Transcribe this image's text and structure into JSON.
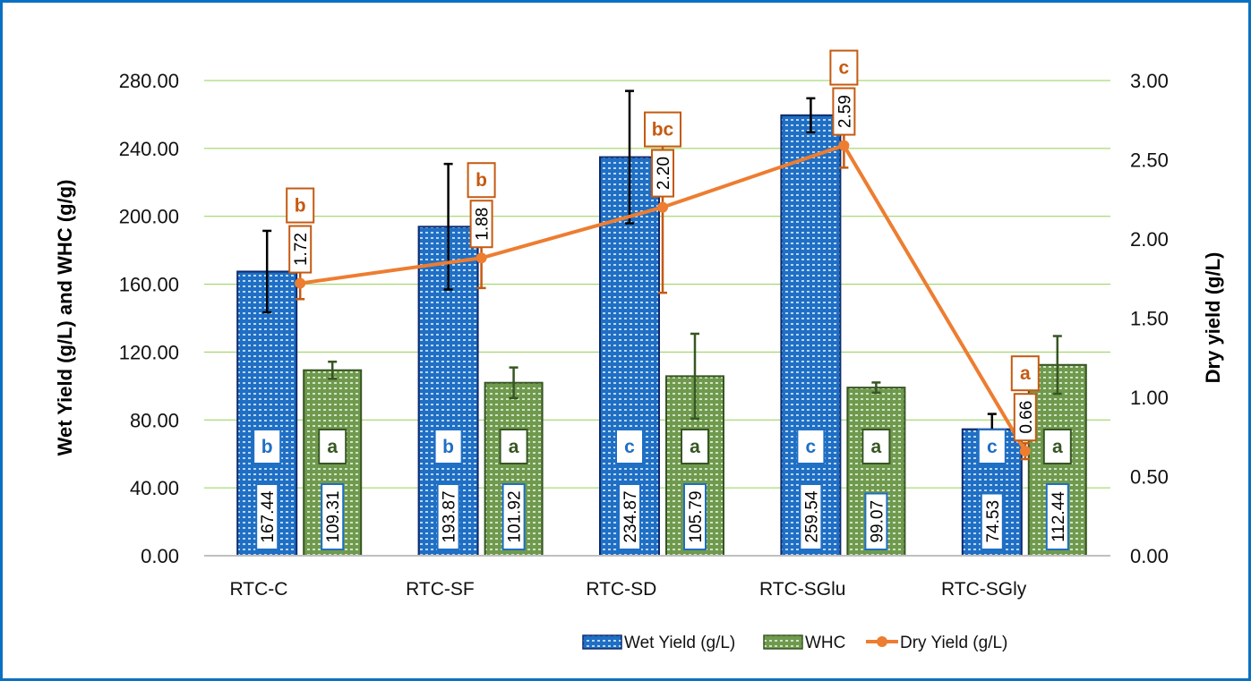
{
  "chart_data": {
    "type": "bar",
    "categories": [
      "RTC-C",
      "RTC-SF",
      "RTC-SD",
      "RTC-SGlu",
      "RTC-SGly"
    ],
    "ylabel": "Wet Yield (g/L) and WHC (g/g)",
    "y2label": "Dry yield (g/L)",
    "ylim": [
      0,
      280
    ],
    "y2lim": [
      0,
      3
    ],
    "yticks": [
      "0.00",
      "40.00",
      "80.00",
      "120.00",
      "160.00",
      "200.00",
      "240.00",
      "280.00"
    ],
    "y2ticks": [
      "0.00",
      "0.50",
      "1.00",
      "1.50",
      "2.00",
      "2.50",
      "3.00"
    ],
    "grid": true,
    "legend_position": "bottom-right",
    "series": [
      {
        "name": "Wet Yield (g/L)",
        "kind": "bar",
        "axis": "left",
        "values": [
          167.44,
          193.87,
          234.87,
          259.54,
          74.53
        ],
        "labels": [
          "167.44",
          "193.87",
          "234.87",
          "259.54",
          "74.53"
        ],
        "errors": [
          24,
          37,
          39,
          10,
          9
        ],
        "letters": [
          "b",
          "b",
          "c",
          "c",
          "c"
        ],
        "color": "#1f6fc4",
        "border": "#0d2a6e"
      },
      {
        "name": "WHC",
        "kind": "bar",
        "axis": "left",
        "values": [
          109.31,
          101.92,
          105.79,
          99.07,
          112.44
        ],
        "labels": [
          "109.31",
          "101.92",
          "105.79",
          "99.07",
          "112.44"
        ],
        "errors": [
          5,
          9,
          25,
          3,
          17
        ],
        "letters": [
          "a",
          "a",
          "a",
          "a",
          "a"
        ],
        "color": "#6f9a4e",
        "border": "#375623"
      },
      {
        "name": "Dry Yield (g/L)",
        "kind": "line",
        "axis": "right",
        "values": [
          1.72,
          1.88,
          2.2,
          2.59,
          0.66
        ],
        "labels": [
          "1.72",
          "1.88",
          "2.20",
          "2.59",
          "0.66"
        ],
        "errors": [
          0.1,
          0.19,
          0.54,
          0.14,
          0.05
        ],
        "letters": [
          "b",
          "b",
          "bc",
          "c",
          "a"
        ],
        "color": "#ed7d31",
        "label_color": "#c55a11"
      }
    ]
  }
}
